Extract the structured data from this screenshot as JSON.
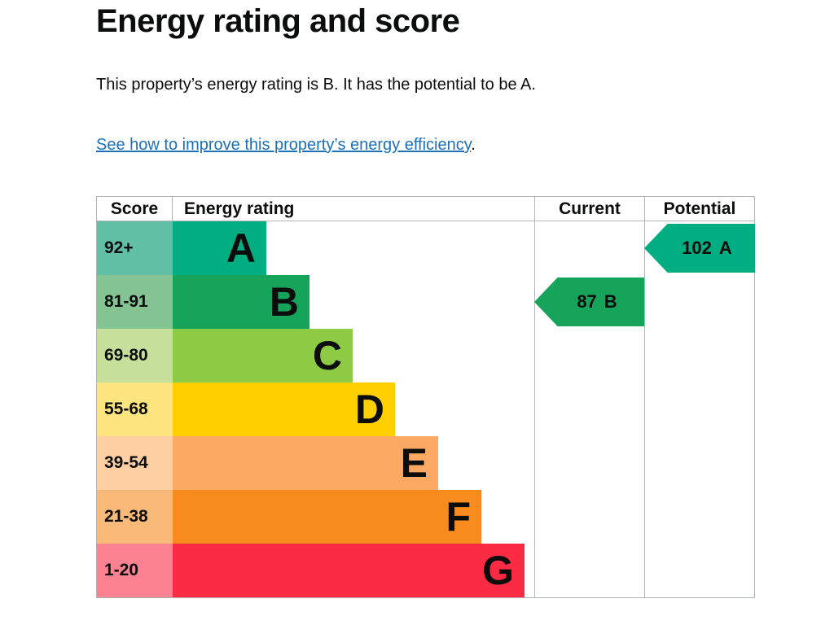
{
  "page": {
    "title": "Energy rating and score",
    "summary": "This property’s energy rating is B. It has the potential to be A.",
    "link_text": "See how to improve this property’s energy efficiency",
    "link_suffix": "."
  },
  "colors": {
    "text": "#0b0c0c",
    "link_blue": "#1d70b8",
    "table_border": "#b1b4b6"
  },
  "chart_data": {
    "type": "table",
    "title": "Energy rating and score",
    "columns": [
      "Score",
      "Energy rating",
      "Current",
      "Potential"
    ],
    "bands": [
      {
        "letter": "A",
        "range": "92+",
        "color": "#00ae82",
        "tint": "#60bfa5"
      },
      {
        "letter": "B",
        "range": "81-91",
        "color": "#16a35a",
        "tint": "#84c493"
      },
      {
        "letter": "C",
        "range": "69-80",
        "color": "#8ccb43",
        "tint": "#c6e09c"
      },
      {
        "letter": "D",
        "range": "55-68",
        "color": "#ffcf00",
        "tint": "#ffe57f"
      },
      {
        "letter": "E",
        "range": "39-54",
        "color": "#fcaa63",
        "tint": "#fdcfa3"
      },
      {
        "letter": "F",
        "range": "21-38",
        "color": "#f78b1e",
        "tint": "#f9b978"
      },
      {
        "letter": "G",
        "range": "1-20",
        "color": "#fc2b44",
        "tint": "#fc8191"
      }
    ],
    "current": {
      "label": "Current",
      "score": "87",
      "letter": "B",
      "band_index": 1,
      "color": "#16a35a"
    },
    "potential": {
      "label": "Potential",
      "score": "102",
      "letter": "A",
      "band_index": 0,
      "color": "#00ae82"
    }
  }
}
